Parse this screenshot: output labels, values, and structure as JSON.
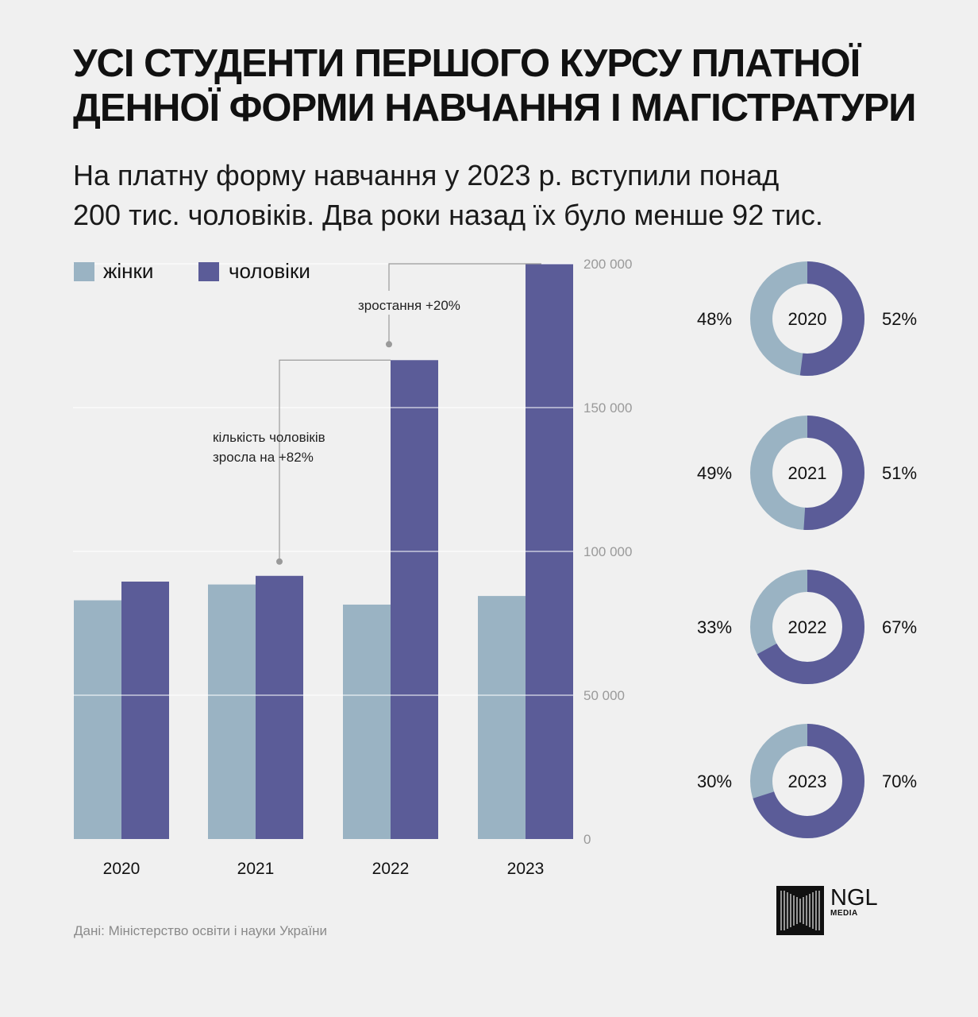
{
  "header": {
    "title_line1": "УСІ СТУДЕНТИ ПЕРШОГО КУРСУ ПЛАТНОЇ",
    "title_line2": "ДЕННОЇ ФОРМИ НАВЧАННЯ І МАГІСТРАТУРИ",
    "subtitle_line1": "На платну форму навчання у 2023 р. вступили понад",
    "subtitle_line2": "200 тис. чоловіків. Два роки назад їх було менше 92 тис."
  },
  "colors": {
    "women": "#9ab3c3",
    "men": "#5b5c98",
    "background": "#f0f0f0",
    "grid": "#ffffff",
    "annotation": "#9a9a9a"
  },
  "chart_data": [
    {
      "type": "bar",
      "categories": [
        "2020",
        "2021",
        "2022",
        "2023"
      ],
      "series": [
        {
          "name": "жінки",
          "color": "#9ab3c3",
          "values": [
            83000,
            88500,
            81500,
            84500
          ]
        },
        {
          "name": "чоловіки",
          "color": "#5b5c98",
          "values": [
            89500,
            91500,
            166500,
            200000
          ]
        }
      ],
      "ylim": [
        0,
        200000
      ],
      "yticks": [
        0,
        50000,
        100000,
        150000,
        200000
      ],
      "ytick_labels": [
        "0",
        "50 000",
        "100 000",
        "150 000",
        "200 000"
      ],
      "legend_position": "top-left",
      "grid": true,
      "annotations": [
        {
          "text_line1": "кількість чоловіків",
          "text_line2": "зросла на +82%",
          "from_category": "2021",
          "to_category": "2022"
        },
        {
          "text_line1": "зростання +20%",
          "text_line2": "",
          "from_category": "2022",
          "to_category": "2023"
        }
      ]
    },
    {
      "type": "pie",
      "donuts": [
        {
          "year": "2020",
          "women": 48,
          "men": 52,
          "women_label": "48%",
          "men_label": "52%"
        },
        {
          "year": "2021",
          "women": 49,
          "men": 51,
          "women_label": "49%",
          "men_label": "51%"
        },
        {
          "year": "2022",
          "women": 33,
          "men": 67,
          "women_label": "33%",
          "men_label": "67%"
        },
        {
          "year": "2023",
          "women": 30,
          "men": 70,
          "women_label": "30%",
          "men_label": "70%"
        }
      ]
    }
  ],
  "footer": {
    "source": "Дані: Міністерство освіти і науки України",
    "logo_name": "NGL",
    "logo_sub": "MEDIA"
  }
}
